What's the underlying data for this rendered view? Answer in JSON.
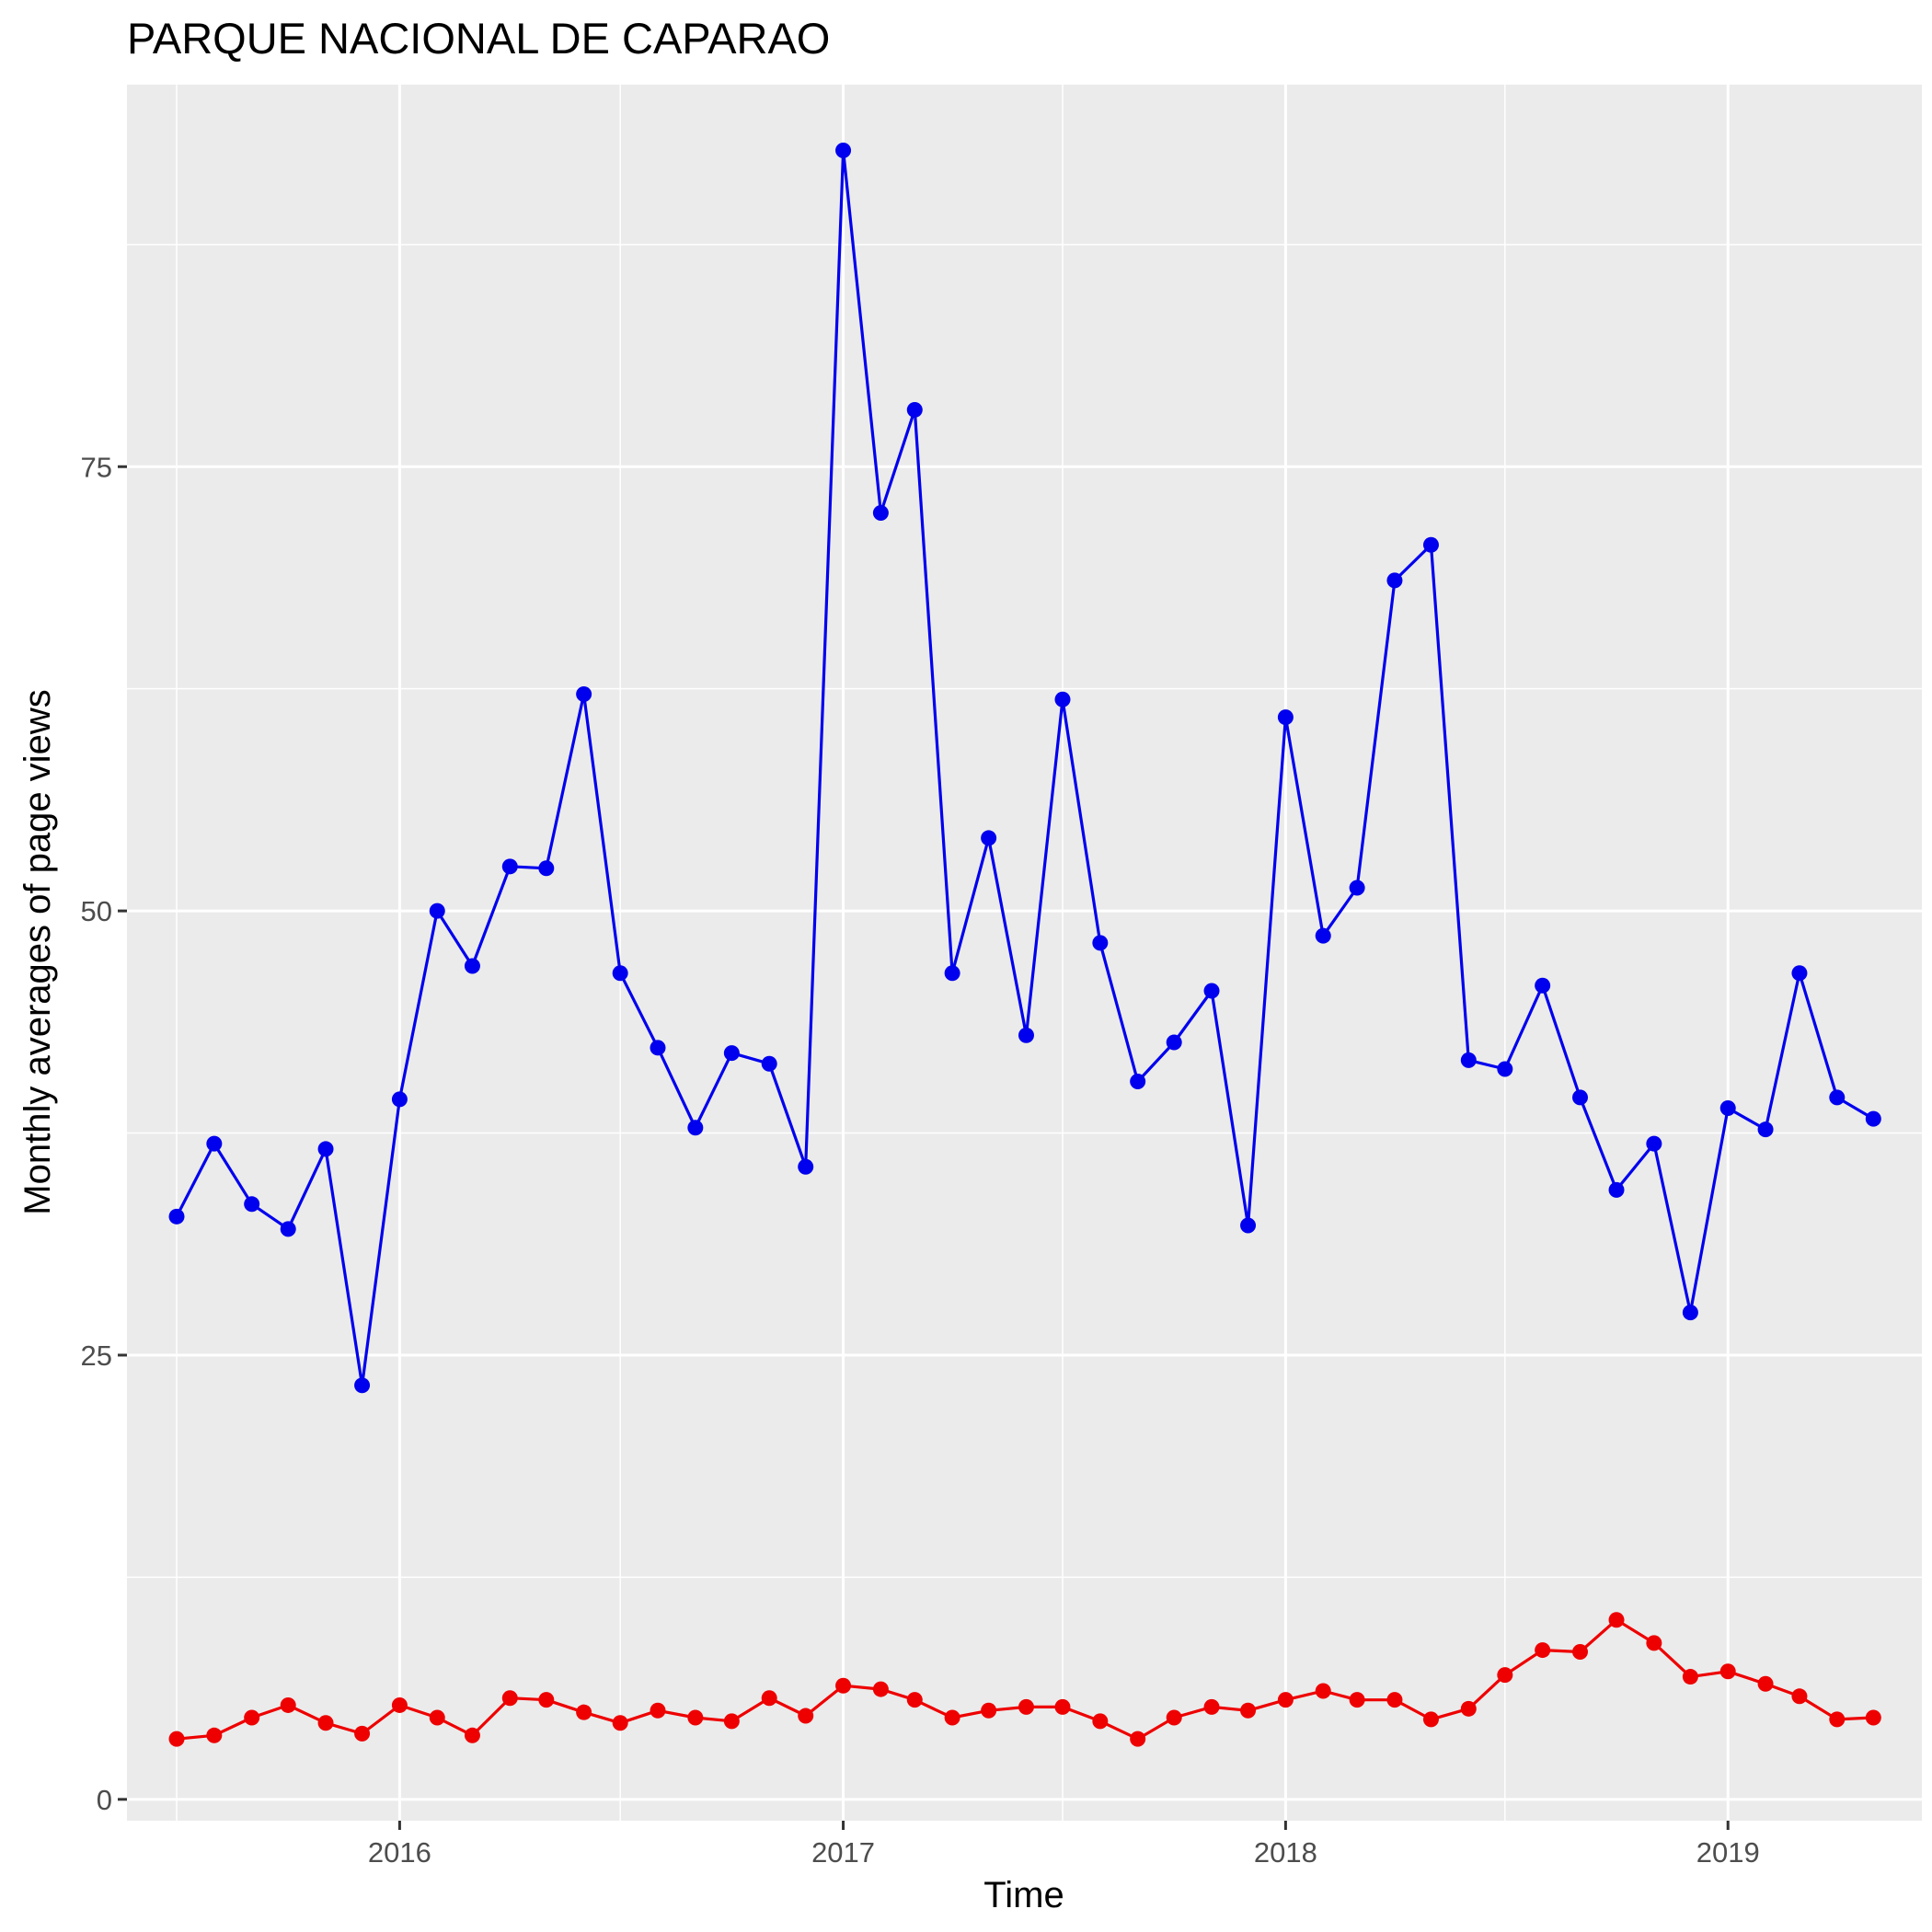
{
  "chart_data": {
    "type": "line",
    "title": "PARQUE NACIONAL DE CAPARAO",
    "xlabel": "Time",
    "ylabel": "Monthly averages of page views",
    "x_axis_type": "date",
    "x_tick_labels": [
      "2016",
      "2017",
      "2018",
      "2019"
    ],
    "y_ticks": [
      0,
      25,
      50,
      75
    ],
    "ylim": [
      -1.2,
      96.5
    ],
    "xlim": [
      "2015-05-21",
      "2019-06-10"
    ],
    "grid": true,
    "legend": "none",
    "background_color": "#ebebeb",
    "gridline_color": "#ffffff",
    "x": [
      "2015-07-01",
      "2015-08-01",
      "2015-09-01",
      "2015-10-01",
      "2015-11-01",
      "2015-12-01",
      "2016-01-01",
      "2016-02-01",
      "2016-03-01",
      "2016-04-01",
      "2016-05-01",
      "2016-06-01",
      "2016-07-01",
      "2016-08-01",
      "2016-09-01",
      "2016-10-01",
      "2016-11-01",
      "2016-12-01",
      "2017-01-01",
      "2017-02-01",
      "2017-03-01",
      "2017-04-01",
      "2017-05-01",
      "2017-06-01",
      "2017-07-01",
      "2017-08-01",
      "2017-09-01",
      "2017-10-01",
      "2017-11-01",
      "2017-12-01",
      "2018-01-01",
      "2018-02-01",
      "2018-03-01",
      "2018-04-01",
      "2018-05-01",
      "2018-06-01",
      "2018-07-01",
      "2018-08-01",
      "2018-09-01",
      "2018-10-01",
      "2018-11-01",
      "2018-12-01",
      "2019-01-01",
      "2019-02-01",
      "2019-03-01",
      "2019-04-01",
      "2019-05-01"
    ],
    "series": [
      {
        "color": "#0000ee",
        "values": [
          32.8,
          36.9,
          33.5,
          32.1,
          36.6,
          23.3,
          39.4,
          50.0,
          46.9,
          52.5,
          52.4,
          62.2,
          46.5,
          42.3,
          37.8,
          42.0,
          41.4,
          35.6,
          92.8,
          72.4,
          78.2,
          46.5,
          54.1,
          43.0,
          61.9,
          48.2,
          40.4,
          42.6,
          45.5,
          32.3,
          60.9,
          48.6,
          51.3,
          68.6,
          70.6,
          41.6,
          41.1,
          45.8,
          39.5,
          34.3,
          36.9,
          27.4,
          38.9,
          37.7,
          46.5,
          39.5,
          38.3
        ]
      },
      {
        "color": "#ee0000",
        "values": [
          3.4,
          3.6,
          4.6,
          5.3,
          4.3,
          3.7,
          5.3,
          4.6,
          3.6,
          5.7,
          5.6,
          4.9,
          4.3,
          5.0,
          4.6,
          4.4,
          5.7,
          4.7,
          6.4,
          6.2,
          5.6,
          4.6,
          5.0,
          5.2,
          5.2,
          4.4,
          3.4,
          4.6,
          5.2,
          5.0,
          5.6,
          6.1,
          5.6,
          5.6,
          4.5,
          5.1,
          7.0,
          8.4,
          8.3,
          10.1,
          8.8,
          6.9,
          7.2,
          6.5,
          5.8,
          4.5,
          4.6
        ]
      }
    ]
  }
}
